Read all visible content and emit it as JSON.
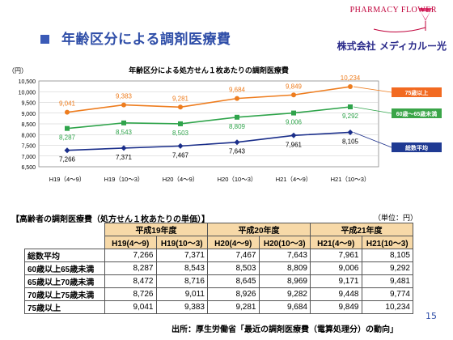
{
  "slide": {
    "title": "年齢区分による調剤医療費",
    "company": "株式会社 メディカルー光",
    "brand": "PHARMACY FLOWER",
    "page_number": "15",
    "source": "出所：厚生労働省「最近の調剤医療費（電算処理分）の動向」"
  },
  "chart_data": {
    "type": "line",
    "title": "年齢区分による処方せん１枚あたりの調剤医療費",
    "ylabel": "（円）",
    "ylim": [
      6500,
      10500
    ],
    "yticks": [
      "6,500",
      "7,000",
      "7,500",
      "8,000",
      "8,500",
      "9,000",
      "9,500",
      "10,000",
      "10,500"
    ],
    "ytick_values": [
      6500,
      7000,
      7500,
      8000,
      8500,
      9000,
      9500,
      10000,
      10500
    ],
    "categories": [
      "H19（4〜9）",
      "H19（10〜3）",
      "H20（4〜9）",
      "H20（10〜3）",
      "H21（4〜9）",
      "H21（10〜3）"
    ],
    "grid": true,
    "series": [
      {
        "name": "75歳以上",
        "color": "#ee7d1f",
        "marker": "circle",
        "values": [
          9041,
          9383,
          9281,
          9684,
          9849,
          10234
        ],
        "value_labels": [
          "9,041",
          "9,383",
          "9,281",
          "9,684",
          "9,849",
          "10,234"
        ],
        "legend_bg": "#f26a21",
        "legend_fg": "#ffffff"
      },
      {
        "name": "60歳〜65歳未満",
        "color": "#2fa44b",
        "marker": "square",
        "values": [
          8287,
          8543,
          8503,
          8809,
          9006,
          9292
        ],
        "value_labels": [
          "8,287",
          "8,543",
          "8,503",
          "8,809",
          "9,006",
          "9,292"
        ],
        "legend_bg": "#3aa548",
        "legend_fg": "#ffffff"
      },
      {
        "name": "総数平均",
        "color": "#1a2e8a",
        "marker": "diamond",
        "values": [
          7266,
          7371,
          7467,
          7643,
          7961,
          8105
        ],
        "value_labels": [
          "7,266",
          "7,371",
          "7,467",
          "7,643",
          "7,961",
          "8,105"
        ],
        "legend_bg": "#1f3a93",
        "legend_fg": "#ffffff"
      }
    ]
  },
  "table": {
    "title": "【高齢者の調剤医療費（処方せん１枚あたりの単価）】",
    "unit": "（単位：円）",
    "years": [
      "平成19年度",
      "平成20年度",
      "平成21年度"
    ],
    "periods": [
      "H19(4〜9)",
      "H19(10〜3)",
      "H20(4〜9)",
      "H20(10〜3)",
      "H21(4〜9)",
      "H21(10〜3)"
    ],
    "rows": [
      {
        "label": "総数平均",
        "values": [
          "7,266",
          "7,371",
          "7,467",
          "7,643",
          "7,961",
          "8,105"
        ]
      },
      {
        "label": "60歳以上65歳未満",
        "values": [
          "8,287",
          "8,543",
          "8,503",
          "8,809",
          "9,006",
          "9,292"
        ]
      },
      {
        "label": "65歳以上70歳未満",
        "values": [
          "8,472",
          "8,716",
          "8,645",
          "8,969",
          "9,171",
          "9,481"
        ]
      },
      {
        "label": "70歳以上75歳未満",
        "values": [
          "8,726",
          "9,011",
          "8,926",
          "9,282",
          "9,448",
          "9,774"
        ]
      },
      {
        "label": "75歳以上",
        "values": [
          "9,041",
          "9,383",
          "9,281",
          "9,684",
          "9,849",
          "10,234"
        ]
      }
    ]
  }
}
